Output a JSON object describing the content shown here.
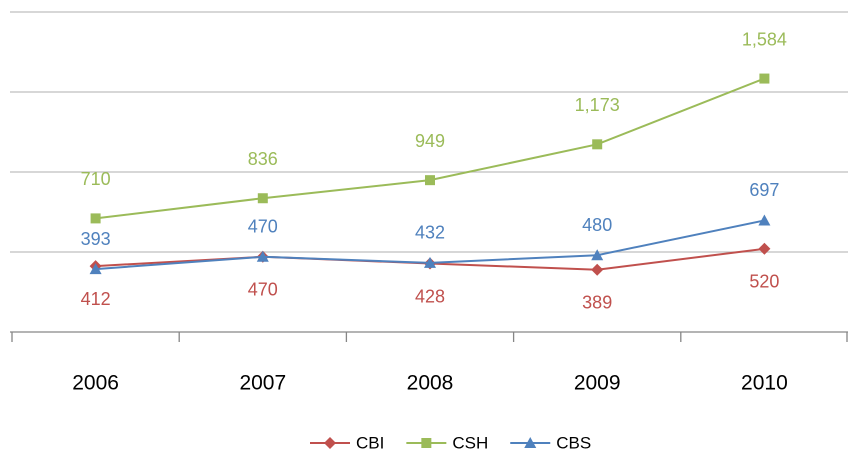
{
  "chart_data": {
    "type": "line",
    "categories": [
      "2006",
      "2007",
      "2008",
      "2009",
      "2010"
    ],
    "series": [
      {
        "name": "CBI",
        "color": "#c0504d",
        "marker": "diamond",
        "values": [
          412,
          470,
          428,
          389,
          520
        ]
      },
      {
        "name": "CSH",
        "color": "#9bbb59",
        "marker": "square",
        "values": [
          710,
          836,
          949,
          1173,
          1584
        ],
        "value_labels": [
          "710",
          "836",
          "949",
          "1,173",
          "1,584"
        ]
      },
      {
        "name": "CBS",
        "color": "#4f81bd",
        "marker": "triangle",
        "values": [
          393,
          470,
          432,
          480,
          697
        ]
      }
    ],
    "ylim": [
      0,
      2000
    ],
    "yticks": [
      0,
      500,
      1000,
      1500,
      2000
    ],
    "grid": true,
    "legend": "bottom"
  }
}
